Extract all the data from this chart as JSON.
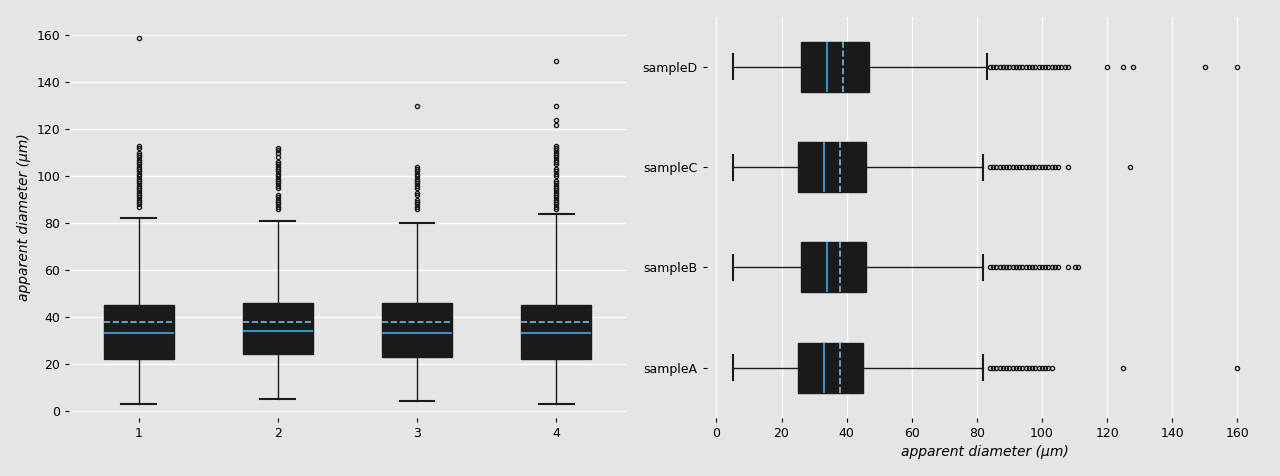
{
  "left_samples": {
    "labels": [
      "1",
      "2",
      "3",
      "4"
    ],
    "q1": [
      22,
      24,
      23,
      22
    ],
    "median": [
      33,
      34,
      33,
      33
    ],
    "q3": [
      45,
      46,
      46,
      45
    ],
    "whisker_low": [
      3,
      5,
      4,
      3
    ],
    "whisker_high": [
      82,
      81,
      80,
      84
    ],
    "mean": [
      38,
      38,
      38,
      38
    ],
    "fliers_above": [
      [
        87,
        88,
        89,
        90,
        91,
        92,
        93,
        94,
        95,
        96,
        97,
        98,
        99,
        100,
        101,
        102,
        103,
        104,
        105,
        106,
        107,
        108,
        109,
        110,
        112,
        113,
        159
      ],
      [
        86,
        87,
        88,
        89,
        90,
        91,
        92,
        95,
        96,
        97,
        98,
        99,
        100,
        101,
        102,
        103,
        104,
        105,
        106,
        108,
        110,
        111,
        112
      ],
      [
        86,
        87,
        88,
        89,
        90,
        92,
        93,
        95,
        96,
        97,
        98,
        99,
        100,
        101,
        102,
        103,
        104,
        130
      ],
      [
        86,
        87,
        88,
        89,
        90,
        91,
        92,
        93,
        94,
        95,
        96,
        97,
        98,
        100,
        101,
        102,
        103,
        105,
        106,
        107,
        108,
        109,
        110,
        111,
        112,
        113,
        122,
        124,
        130,
        149
      ]
    ]
  },
  "right_samples": {
    "labels": [
      "sampleD",
      "sampleC",
      "sampleB",
      "sampleA"
    ],
    "q1": [
      26,
      25,
      26,
      25
    ],
    "median": [
      34,
      33,
      34,
      33
    ],
    "q3": [
      47,
      46,
      46,
      45
    ],
    "whisker_low": [
      5,
      5,
      5,
      5
    ],
    "whisker_high": [
      83,
      82,
      82,
      82
    ],
    "mean": [
      39,
      38,
      38,
      38
    ],
    "fliers_above": [
      [
        84,
        85,
        86,
        87,
        88,
        89,
        90,
        91,
        92,
        93,
        94,
        95,
        96,
        97,
        98,
        99,
        100,
        101,
        102,
        103,
        104,
        105,
        106,
        107,
        108,
        120,
        125,
        128,
        150,
        160
      ],
      [
        84,
        85,
        86,
        87,
        88,
        89,
        90,
        91,
        92,
        93,
        94,
        95,
        96,
        97,
        98,
        99,
        100,
        101,
        102,
        103,
        104,
        105,
        108,
        127
      ],
      [
        84,
        85,
        86,
        87,
        88,
        89,
        90,
        91,
        92,
        93,
        94,
        95,
        96,
        97,
        98,
        99,
        100,
        101,
        102,
        103,
        104,
        105,
        108,
        110,
        111
      ],
      [
        84,
        85,
        86,
        87,
        88,
        89,
        90,
        91,
        92,
        93,
        94,
        95,
        96,
        97,
        98,
        99,
        100,
        101,
        102,
        103,
        125,
        160
      ]
    ]
  },
  "bg_color": "#e5e5e5",
  "box_facecolor": "#f5f5f5",
  "box_edgecolor": "#1a1a1a",
  "median_color": "#3a8ec8",
  "mean_color": "#7ab8e0",
  "flier_marker": "o",
  "flier_markersize": 3,
  "flier_color": "#1a1a1a",
  "ylabel_left": "apparent diameter (μm)",
  "xlabel_right": "apparent diameter (μm)",
  "ylim_left": [
    -3,
    168
  ],
  "xlim_right": [
    -3,
    168
  ],
  "yticks_left": [
    0,
    20,
    40,
    60,
    80,
    100,
    120,
    140,
    160
  ],
  "xticks_right": [
    0,
    20,
    40,
    60,
    80,
    100,
    120,
    140,
    160
  ],
  "grid_color": "#ffffff",
  "grid_linewidth": 1.0
}
